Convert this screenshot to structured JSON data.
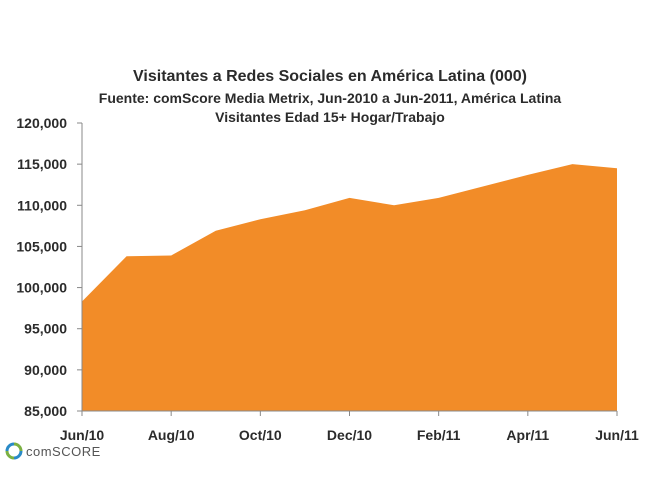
{
  "chart_data": {
    "type": "area",
    "title": "Visitantes a  Redes Sociales en América Latina (000)",
    "subtitle": [
      "Fuente: comScore Media Metrix, Jun-2010 a Jun-2011, América Latina",
      "Visitantes Edad 15+ Hogar/Trabajo"
    ],
    "x": [
      "Jun/10",
      "Jul/10",
      "Aug/10",
      "Sep/10",
      "Oct/10",
      "Nov/10",
      "Dec/10",
      "Jan/11",
      "Feb/11",
      "Mar/11",
      "Apr/11",
      "May/11",
      "Jun/11"
    ],
    "x_tick_labels": [
      "Jun/10",
      "Aug/10",
      "Oct/10",
      "Dec/10",
      "Feb/11",
      "Apr/11",
      "Jun/11"
    ],
    "values": [
      98300,
      103800,
      103900,
      106900,
      108300,
      109400,
      110900,
      110000,
      110900,
      112300,
      113700,
      115000,
      114500
    ],
    "ylim": [
      85000,
      120000
    ],
    "y_tick_labels": [
      "120,000",
      "115,000",
      "110,000",
      "105,000",
      "100,000",
      "95,000",
      "90,000",
      "85,000"
    ],
    "y_ticks": [
      120000,
      115000,
      110000,
      105000,
      100000,
      95000,
      90000,
      85000
    ],
    "fill_color": "#F28C28",
    "grid": false,
    "legend": "none"
  },
  "logo": {
    "text": "comSCORE",
    "icon": "comscore-logo-icon",
    "colors": [
      "#7BB043",
      "#2A8AC7"
    ]
  }
}
